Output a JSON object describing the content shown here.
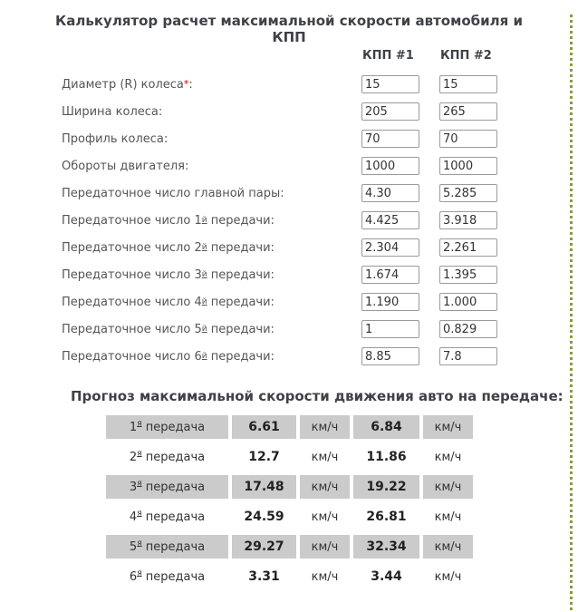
{
  "page": {
    "title": "Калькулятор расчет максимальной скорости автомобиля и КПП",
    "accent_color": "#8d9742"
  },
  "form": {
    "col_headers": [
      "КПП #1",
      "КПП #2"
    ],
    "rows": [
      {
        "pre": "Диаметр (R) колеса",
        "sup": "*",
        "sup_class": "sup-required",
        "post": ":",
        "kpp1": "15",
        "kpp2": "15"
      },
      {
        "pre": "Ширина колеса",
        "sup": "",
        "sup_class": "sup-ordinal",
        "post": ":",
        "kpp1": "205",
        "kpp2": "265"
      },
      {
        "pre": "Профиль колеса",
        "sup": "",
        "sup_class": "sup-ordinal",
        "post": ":",
        "kpp1": "70",
        "kpp2": "70"
      },
      {
        "pre": "Обороты двигателя",
        "sup": "",
        "sup_class": "sup-ordinal",
        "post": ":",
        "kpp1": "1000",
        "kpp2": "1000"
      },
      {
        "pre": "Передаточное число главной пары",
        "sup": "",
        "sup_class": "sup-ordinal",
        "post": ":",
        "kpp1": "4.30",
        "kpp2": "5.285"
      },
      {
        "pre": "Передаточное число 1",
        "sup": "й",
        "sup_class": "sup-ordinal",
        "post": " передачи:",
        "kpp1": "4.425",
        "kpp2": "3.918"
      },
      {
        "pre": "Передаточное число 2",
        "sup": "й",
        "sup_class": "sup-ordinal",
        "post": " передачи:",
        "kpp1": "2.304",
        "kpp2": "2.261"
      },
      {
        "pre": "Передаточное число 3",
        "sup": "й",
        "sup_class": "sup-ordinal",
        "post": " передачи:",
        "kpp1": "1.674",
        "kpp2": "1.395"
      },
      {
        "pre": "Передаточное число 4",
        "sup": "й",
        "sup_class": "sup-ordinal",
        "post": " передачи:",
        "kpp1": "1.190",
        "kpp2": "1.000"
      },
      {
        "pre": "Передаточное число 5",
        "sup": "й",
        "sup_class": "sup-ordinal",
        "post": " передачи:",
        "kpp1": "1",
        "kpp2": "0.829"
      },
      {
        "pre": "Передаточное число 6",
        "sup": "й",
        "sup_class": "sup-ordinal",
        "post": " передачи:",
        "kpp1": "8.85",
        "kpp2": "7.8"
      }
    ]
  },
  "speed_table": {
    "heading": "Прогноз максимальной скорости движения авто на передаче:",
    "unit": "км/ч",
    "rows": [
      {
        "num": "1",
        "sup": "я",
        "label": " передача",
        "v1": "6.61",
        "v2": "6.84"
      },
      {
        "num": "2",
        "sup": "я",
        "label": " передача",
        "v1": "12.7",
        "v2": "11.86"
      },
      {
        "num": "3",
        "sup": "я",
        "label": " передача",
        "v1": "17.48",
        "v2": "19.22"
      },
      {
        "num": "4",
        "sup": "я",
        "label": " передача",
        "v1": "24.59",
        "v2": "26.81"
      },
      {
        "num": "5",
        "sup": "я",
        "label": " передача",
        "v1": "29.27",
        "v2": "32.34"
      },
      {
        "num": "6",
        "sup": "я",
        "label": " передача",
        "v1": "3.31",
        "v2": "3.44"
      }
    ]
  }
}
